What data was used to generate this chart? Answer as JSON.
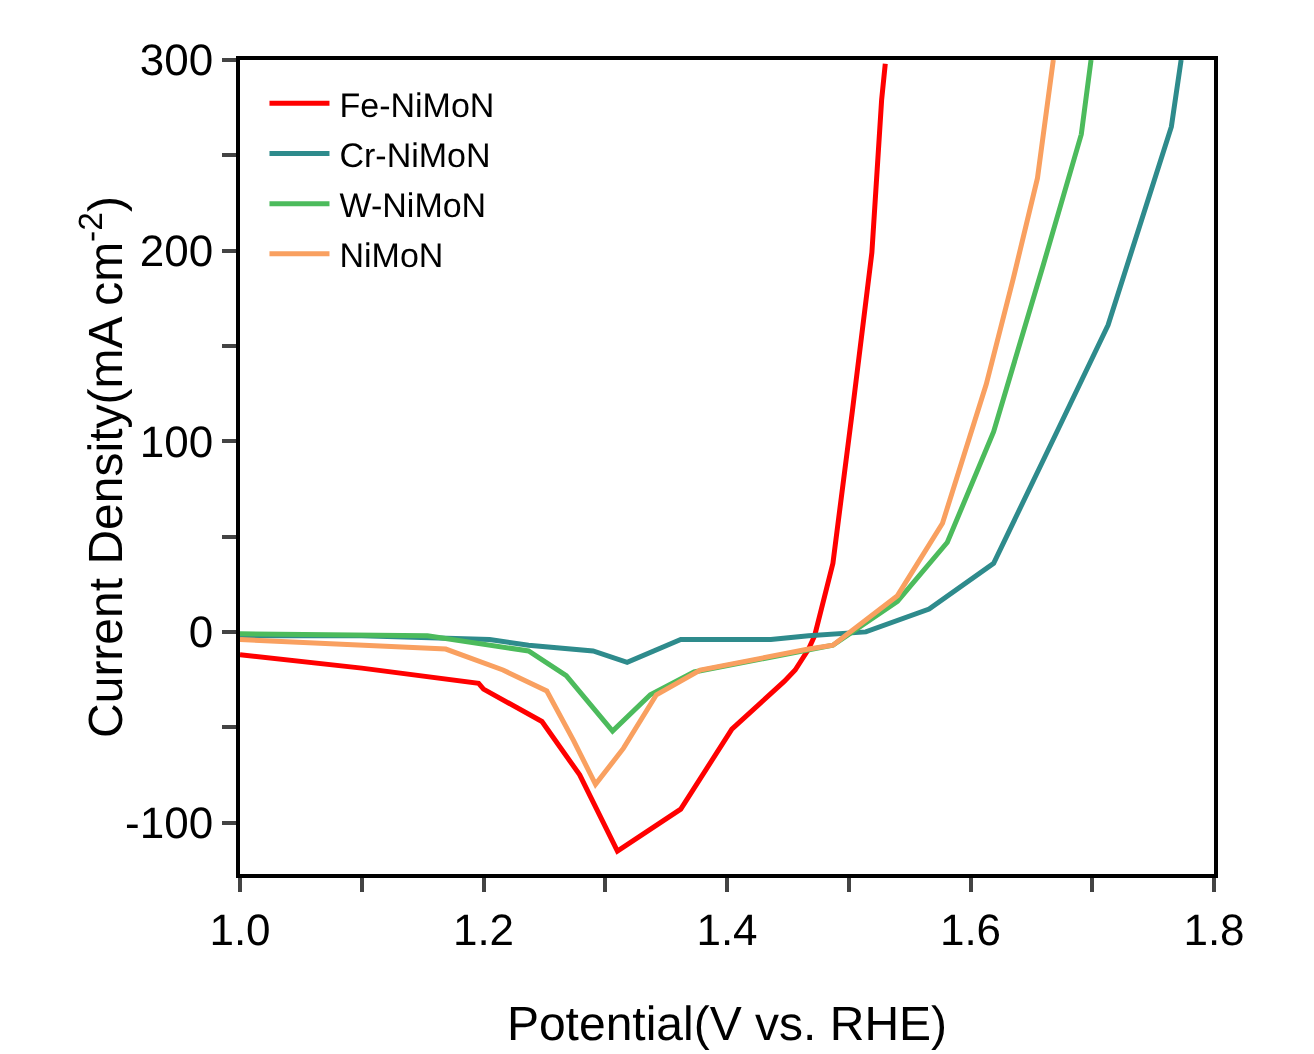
{
  "chart_data": {
    "type": "line",
    "xlabel": "Potential(V vs. RHE)",
    "ylabel": "Current Density(mA cm$^{-2}$)",
    "xlim": [
      1.0,
      1.8
    ],
    "ylim": [
      -127,
      300
    ],
    "xticks": [
      {
        "value": 1.0,
        "label": "1.0"
      },
      {
        "value": 1.1,
        "label": null
      },
      1.2,
      {
        "value": 1.3,
        "label": null
      },
      1.4,
      {
        "value": 1.5,
        "label": null
      },
      1.6,
      {
        "value": 1.7,
        "label": null
      },
      1.8
    ],
    "yticks": [
      -100,
      {
        "value": -50,
        "label": null
      },
      0,
      {
        "value": 50,
        "label": null
      },
      100,
      {
        "value": 150,
        "label": null
      },
      200,
      {
        "value": 250,
        "label": null
      },
      300
    ],
    "grid": false,
    "legend": "top left",
    "line_style": "solid",
    "marker": "none",
    "series": [
      {
        "name": "Fe-NiMoN",
        "color": "#ff0000",
        "x": [
          1.0,
          1.1,
          1.196,
          1.2,
          1.248,
          1.279,
          1.31,
          1.362,
          1.404,
          1.447,
          1.456,
          1.467,
          1.472,
          1.487,
          1.503,
          1.519,
          1.527,
          1.53
        ],
        "values": [
          -12,
          -19,
          -27,
          -30,
          -47,
          -75,
          -115,
          -93,
          -51,
          -26,
          -20,
          -9,
          -2,
          36,
          116,
          199,
          279,
          298
        ]
      },
      {
        "name": "Cr-NiMoN",
        "color": "#2e8b8c",
        "x": [
          1.0,
          1.1,
          1.205,
          1.237,
          1.29,
          1.318,
          1.362,
          1.436,
          1.467,
          1.514,
          1.566,
          1.619,
          1.671,
          1.713,
          1.765,
          1.773
        ],
        "values": [
          -2,
          -2,
          -4,
          -7,
          -10,
          -16,
          -4,
          -4,
          -2,
          0,
          12,
          36,
          105,
          161,
          265,
          300
        ]
      },
      {
        "name": "W-NiMoN",
        "color": "#4cbb5c",
        "x": [
          1.0,
          1.154,
          1.237,
          1.268,
          1.306,
          1.337,
          1.373,
          1.487,
          1.54,
          1.581,
          1.619,
          1.66,
          1.691,
          1.699
        ],
        "values": [
          -1,
          -2,
          -10,
          -23,
          -52,
          -33,
          -21,
          -7,
          16,
          47,
          105,
          193,
          261,
          300
        ]
      },
      {
        "name": "NiMoN",
        "color": "#f9a060",
        "x": [
          1.0,
          1.169,
          1.216,
          1.252,
          1.274,
          1.292,
          1.315,
          1.342,
          1.378,
          1.467,
          1.487,
          1.54,
          1.577,
          1.613,
          1.635,
          1.655,
          1.668
        ],
        "values": [
          -4,
          -9,
          -20,
          -31,
          -57,
          -80,
          -61,
          -33,
          -20,
          -9,
          -7,
          19,
          57,
          130,
          185,
          238,
          300
        ]
      }
    ]
  }
}
